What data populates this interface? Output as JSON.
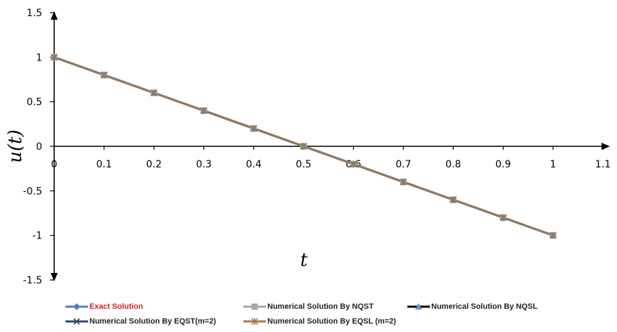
{
  "chart_data": {
    "type": "line",
    "title": "",
    "xlabel": "t",
    "ylabel": "u(t)",
    "xlim": [
      0,
      1.1
    ],
    "ylim": [
      -1.5,
      1.5
    ],
    "xticks": [
      "0",
      "0.1",
      "0.2",
      "0.3",
      "0.4",
      "0.5",
      "0.6",
      "0.7",
      "0.8",
      "0.9",
      "1",
      "1.1"
    ],
    "yticks": [
      "1.5",
      "1",
      "0.5",
      "0",
      "-0.5",
      "-1",
      "-1.5"
    ],
    "grid": false,
    "legend_position": "bottom",
    "x": [
      0,
      0.1,
      0.2,
      0.3,
      0.4,
      0.5,
      0.6,
      0.7,
      0.8,
      0.9,
      1.0
    ],
    "series": [
      {
        "name": "Exact Solution",
        "marker": "diamond",
        "color": "#4a7fc8",
        "values": [
          1,
          0.8,
          0.6,
          0.4,
          0.2,
          0,
          -0.2,
          -0.4,
          -0.6,
          -0.8,
          -1
        ]
      },
      {
        "name": "Numerical Solution By NQST",
        "marker": "square",
        "color": "#a6a6a6",
        "values": [
          1,
          0.8,
          0.6,
          0.4,
          0.2,
          0,
          -0.2,
          -0.4,
          -0.6,
          -0.8,
          -1
        ]
      },
      {
        "name": "Numerical Solution By NQSL",
        "marker": "triangle",
        "color": "#5a96d2",
        "values": [
          1,
          0.8,
          0.6,
          0.4,
          0.2,
          0,
          -0.2,
          -0.4,
          -0.6,
          -0.8,
          -1
        ]
      },
      {
        "name": "Numerical Solution By EQST(m=2)",
        "marker": "x",
        "color": "#2d4a72",
        "values": [
          1,
          0.8,
          0.6,
          0.4,
          0.2,
          0,
          -0.2,
          -0.4,
          -0.6,
          -0.8,
          -1
        ]
      },
      {
        "name": "Numerical Solution By EQSL (m=2)",
        "marker": "star",
        "color": "#a07a50",
        "values": [
          1,
          0.8,
          0.6,
          0.4,
          0.2,
          0,
          -0.2,
          -0.4,
          -0.6,
          -0.8,
          -1
        ]
      }
    ]
  }
}
